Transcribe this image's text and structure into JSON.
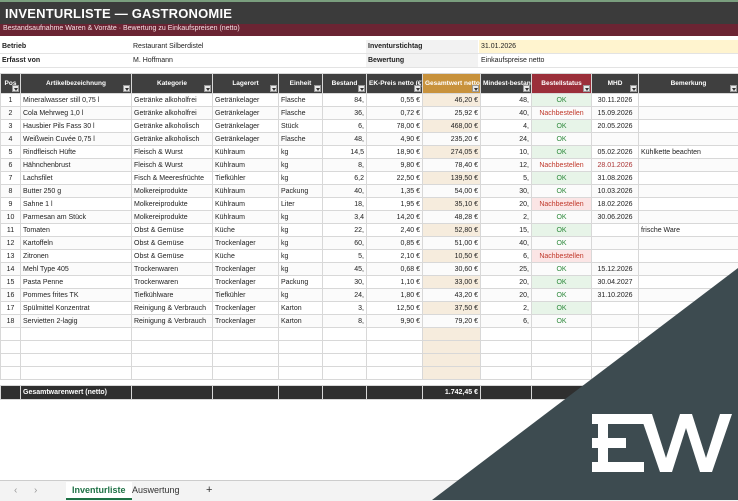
{
  "header": {
    "title": "INVENTURLISTE — GASTRONOMIE",
    "subtitle": "Bestandsaufnahme Waren & Vorräte · Bewertung zu Einkaufspreisen (netto)"
  },
  "info": {
    "betrieb_label": "Betrieb",
    "betrieb_value": "Restaurant Silberdistel",
    "erfasst_label": "Erfasst von",
    "erfasst_value": "M. Hoffmann",
    "stichtag_label": "Inventurstichtag",
    "stichtag_value": "31.01.2026",
    "bewertung_label": "Bewertung",
    "bewertung_value": "Einkaufspreise netto"
  },
  "columns": [
    "Pos",
    "Artikelbezeichnung",
    "Kategorie",
    "Lagerort",
    "Einheit",
    "Bestand",
    "EK-Preis netto (€)",
    "Gesamtwert netto (€)",
    "Mindest-bestand",
    "Bestellstatus",
    "MHD",
    "Bemerkung"
  ],
  "rows": [
    {
      "pos": "1",
      "name": "Mineralwasser still 0,75 l",
      "cat": "Getränke alkoholfrei",
      "ort": "Getränkelager",
      "unit": "Flasche",
      "qty": "84,",
      "price": "0,55 €",
      "total": "46,20 €",
      "min": "48,",
      "status": "OK",
      "mhd": "30.11.2026",
      "note": ""
    },
    {
      "pos": "2",
      "name": "Cola Mehrweg 1,0 l",
      "cat": "Getränke alkoholfrei",
      "ort": "Getränkelager",
      "unit": "Flasche",
      "qty": "36,",
      "price": "0,72 €",
      "total": "25,92 €",
      "min": "40,",
      "status": "Nachbestellen",
      "mhd": "15.09.2026",
      "note": ""
    },
    {
      "pos": "3",
      "name": "Hausbier Pils Fass 30 l",
      "cat": "Getränke alkoholisch",
      "ort": "Getränkelager",
      "unit": "Stück",
      "qty": "6,",
      "price": "78,00 €",
      "total": "468,00 €",
      "min": "4,",
      "status": "OK",
      "mhd": "20.05.2026",
      "note": ""
    },
    {
      "pos": "4",
      "name": "Weißwein Cuvée 0,75 l",
      "cat": "Getränke alkoholisch",
      "ort": "Getränkelager",
      "unit": "Flasche",
      "qty": "48,",
      "price": "4,90 €",
      "total": "235,20 €",
      "min": "24,",
      "status": "OK",
      "mhd": "",
      "note": ""
    },
    {
      "pos": "5",
      "name": "Rindfleisch Hüfte",
      "cat": "Fleisch & Wurst",
      "ort": "Kühlraum",
      "unit": "kg",
      "qty": "14,5",
      "price": "18,90 €",
      "total": "274,05 €",
      "min": "10,",
      "status": "OK",
      "mhd": "05.02.2026",
      "note": "Kühlkette beachten"
    },
    {
      "pos": "6",
      "name": "Hähnchenbrust",
      "cat": "Fleisch & Wurst",
      "ort": "Kühlraum",
      "unit": "kg",
      "qty": "8,",
      "price": "9,80 €",
      "total": "78,40 €",
      "min": "12,",
      "status": "Nachbestellen",
      "mhd": "28.01.2026",
      "note": ""
    },
    {
      "pos": "7",
      "name": "Lachsfilet",
      "cat": "Fisch & Meeresfrüchte",
      "ort": "Tiefkühler",
      "unit": "kg",
      "qty": "6,2",
      "price": "22,50 €",
      "total": "139,50 €",
      "min": "5,",
      "status": "OK",
      "mhd": "31.08.2026",
      "note": ""
    },
    {
      "pos": "8",
      "name": "Butter 250 g",
      "cat": "Molkereiprodukte",
      "ort": "Kühlraum",
      "unit": "Packung",
      "qty": "40,",
      "price": "1,35 €",
      "total": "54,00 €",
      "min": "30,",
      "status": "OK",
      "mhd": "10.03.2026",
      "note": ""
    },
    {
      "pos": "9",
      "name": "Sahne 1 l",
      "cat": "Molkereiprodukte",
      "ort": "Kühlraum",
      "unit": "Liter",
      "qty": "18,",
      "price": "1,95 €",
      "total": "35,10 €",
      "min": "20,",
      "status": "Nachbestellen",
      "mhd": "18.02.2026",
      "note": ""
    },
    {
      "pos": "10",
      "name": "Parmesan am Stück",
      "cat": "Molkereiprodukte",
      "ort": "Kühlraum",
      "unit": "kg",
      "qty": "3,4",
      "price": "14,20 €",
      "total": "48,28 €",
      "min": "2,",
      "status": "OK",
      "mhd": "30.06.2026",
      "note": ""
    },
    {
      "pos": "11",
      "name": "Tomaten",
      "cat": "Obst & Gemüse",
      "ort": "Küche",
      "unit": "kg",
      "qty": "22,",
      "price": "2,40 €",
      "total": "52,80 €",
      "min": "15,",
      "status": "OK",
      "mhd": "",
      "note": "frische Ware"
    },
    {
      "pos": "12",
      "name": "Kartoffeln",
      "cat": "Obst & Gemüse",
      "ort": "Trockenlager",
      "unit": "kg",
      "qty": "60,",
      "price": "0,85 €",
      "total": "51,00 €",
      "min": "40,",
      "status": "OK",
      "mhd": "",
      "note": ""
    },
    {
      "pos": "13",
      "name": "Zitronen",
      "cat": "Obst & Gemüse",
      "ort": "Küche",
      "unit": "kg",
      "qty": "5,",
      "price": "2,10 €",
      "total": "10,50 €",
      "min": "6,",
      "status": "Nachbestellen",
      "mhd": "",
      "note": ""
    },
    {
      "pos": "14",
      "name": "Mehl Type 405",
      "cat": "Trockenwaren",
      "ort": "Trockenlager",
      "unit": "kg",
      "qty": "45,",
      "price": "0,68 €",
      "total": "30,60 €",
      "min": "25,",
      "status": "OK",
      "mhd": "15.12.2026",
      "note": ""
    },
    {
      "pos": "15",
      "name": "Pasta Penne",
      "cat": "Trockenwaren",
      "ort": "Trockenlager",
      "unit": "Packung",
      "qty": "30,",
      "price": "1,10 €",
      "total": "33,00 €",
      "min": "20,",
      "status": "OK",
      "mhd": "30.04.2027",
      "note": ""
    },
    {
      "pos": "16",
      "name": "Pommes frites TK",
      "cat": "Tiefkühlware",
      "ort": "Tiefkühler",
      "unit": "kg",
      "qty": "24,",
      "price": "1,80 €",
      "total": "43,20 €",
      "min": "20,",
      "status": "OK",
      "mhd": "31.10.2026",
      "note": ""
    },
    {
      "pos": "17",
      "name": "Spülmittel Konzentrat",
      "cat": "Reinigung & Verbrauch",
      "ort": "Trockenlager",
      "unit": "Karton",
      "qty": "3,",
      "price": "12,50 €",
      "total": "37,50 €",
      "min": "2,",
      "status": "OK",
      "mhd": "",
      "note": ""
    },
    {
      "pos": "18",
      "name": "Servietten 2-lagig",
      "cat": "Reinigung & Verbrauch",
      "ort": "Trockenlager",
      "unit": "Karton",
      "qty": "8,",
      "price": "9,90 €",
      "total": "79,20 €",
      "min": "6,",
      "status": "OK",
      "mhd": "",
      "note": ""
    }
  ],
  "summary": {
    "label": "Gesamtwarenwert (netto)",
    "value": "1.742,45 €"
  },
  "sheets": {
    "tab1": "Inventurliste",
    "tab2": "Auswertung",
    "add": "+"
  },
  "colors": {
    "title_bg": "#3b3b3b",
    "subtitle_bg": "#6b2433",
    "value_header": "#c8923c",
    "status_header": "#9b2f3a",
    "ok": "#2e8a3c",
    "reorder": "#c0392b",
    "overlay": "#3d4b50"
  },
  "logo": "EW"
}
